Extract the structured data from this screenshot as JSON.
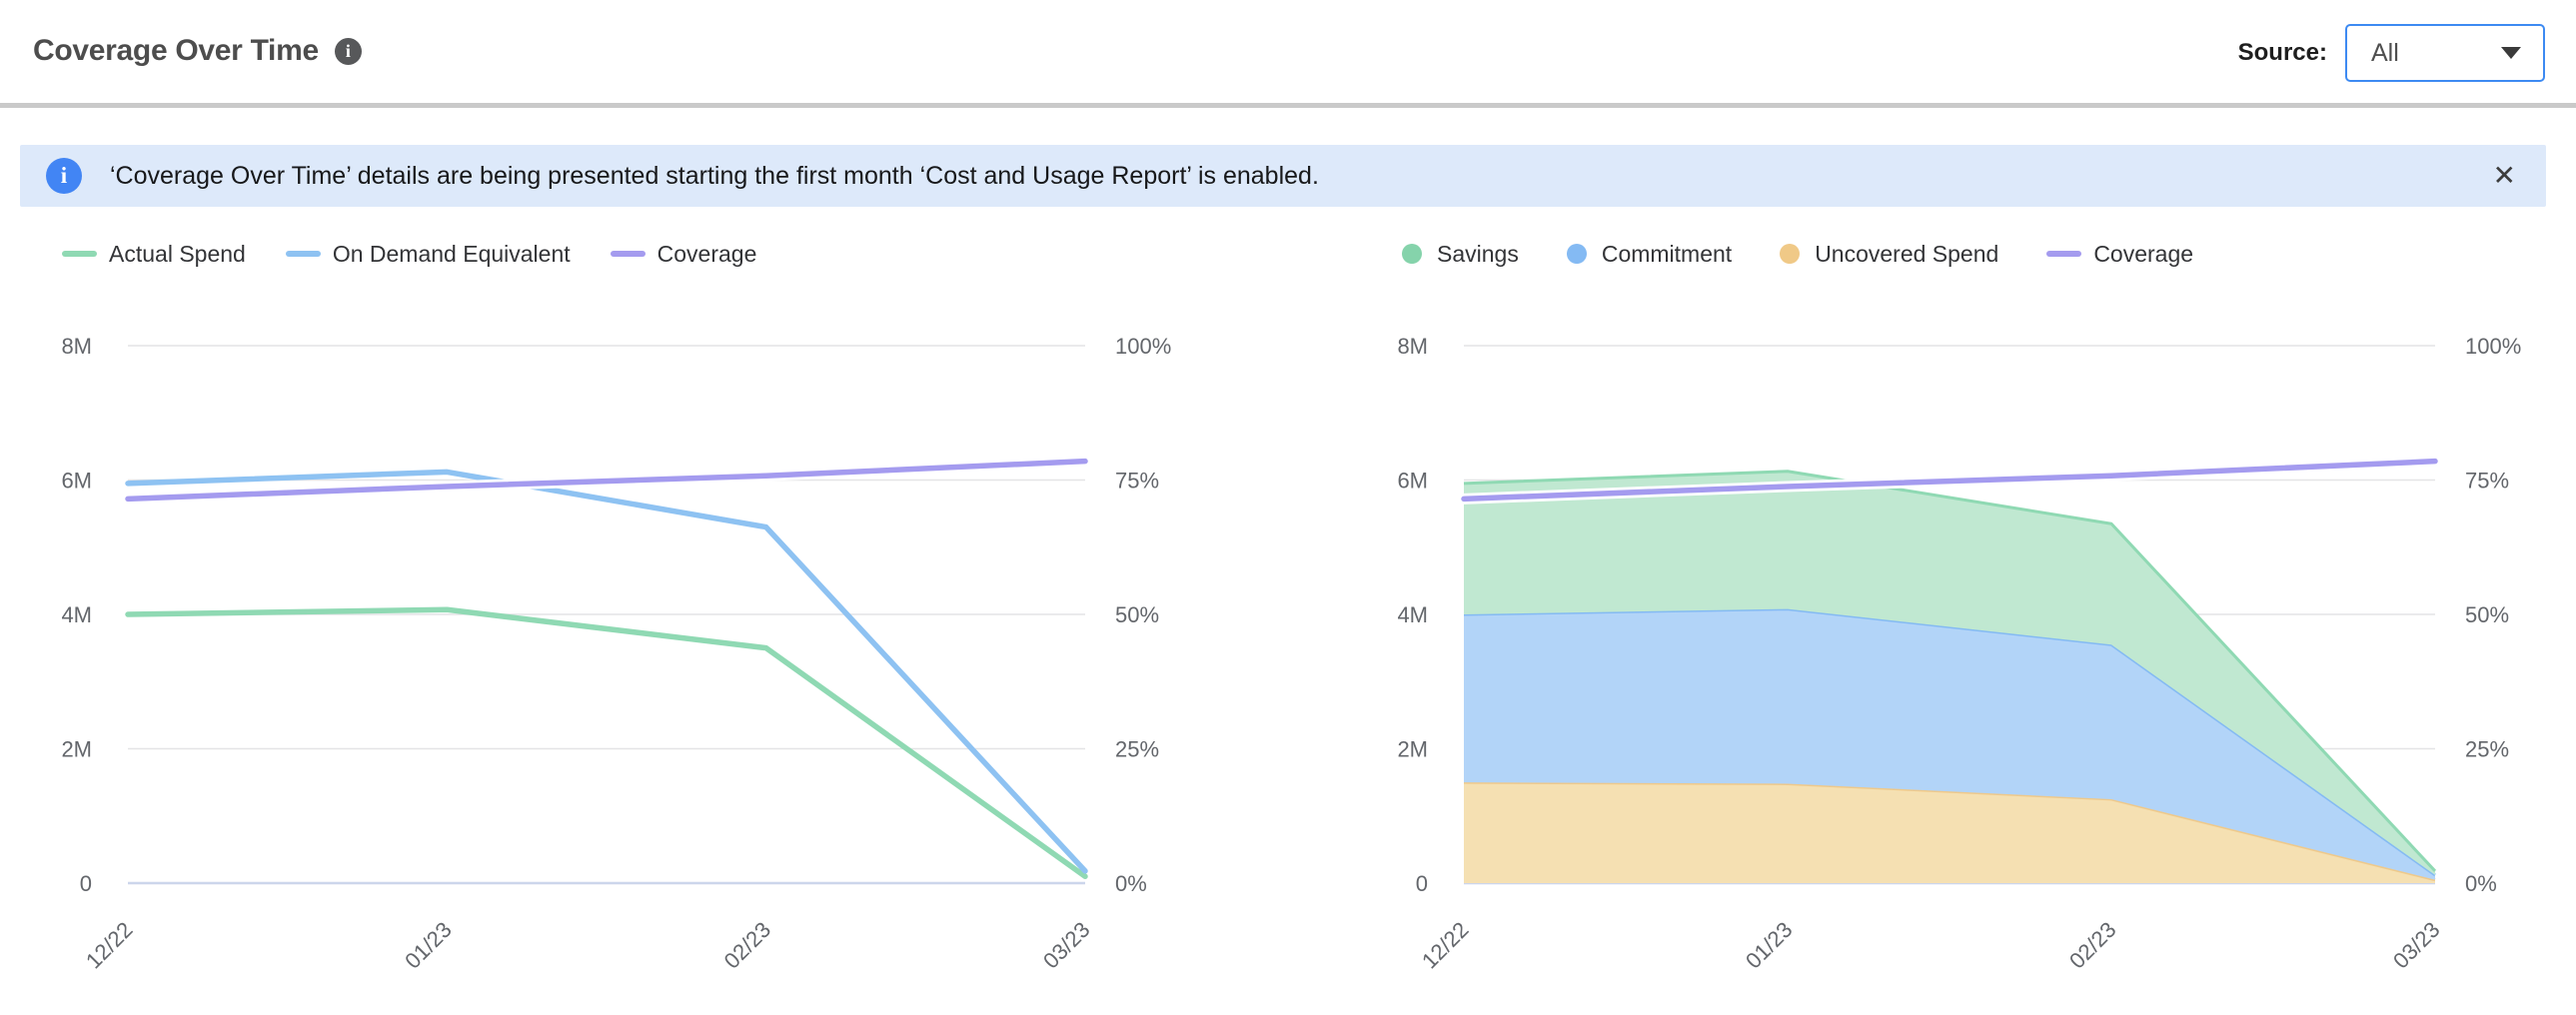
{
  "header": {
    "title": "Coverage Over Time",
    "source_label": "Source:",
    "source_value": "All"
  },
  "icons": {
    "info_glyph": "i",
    "close_glyph": "✕"
  },
  "banner": {
    "text": "‘Coverage Over Time’ details are being presented starting the first month ‘Cost and Usage Report’ is enabled."
  },
  "colors": {
    "banner_bg": "#dde9fa",
    "banner_icon_blue": "#4285f4",
    "dropdown_border_blue": "#3d8af2",
    "gridline": "#e4e4e6",
    "zero_axis_line": "#ccd6eb",
    "green": "#8fd9b3",
    "green_fill": "#c0e8d1",
    "blue": "#8ec2f2",
    "blue_fill": "#b2d4f8",
    "orange": "#eec98c",
    "orange_fill": "#f5e0b2",
    "purple": "#a49bef"
  },
  "chart_data": [
    {
      "id": "left",
      "type": "line",
      "title": "",
      "x": [
        "12/22",
        "01/23",
        "02/23",
        "03/23"
      ],
      "y_left": {
        "ticks": [
          "0",
          "2M",
          "4M",
          "6M",
          "8M"
        ],
        "max": 8,
        "unit": "M"
      },
      "y_right": {
        "ticks": [
          "0%",
          "25%",
          "50%",
          "75%",
          "100%"
        ],
        "max": 100,
        "unit": "%"
      },
      "grid": true,
      "legend_position": "top-left",
      "series": [
        {
          "name": "Actual Spend",
          "type": "line",
          "axis": "left",
          "color": "#8fd9b3",
          "values_m": [
            4.0,
            4.07,
            3.5,
            0.1
          ]
        },
        {
          "name": "On Demand Equivalent",
          "type": "line",
          "axis": "left",
          "color": "#8ec2f2",
          "values_m": [
            5.95,
            6.12,
            5.3,
            0.18
          ]
        },
        {
          "name": "Coverage",
          "type": "line",
          "axis": "right",
          "color": "#a49bef",
          "halo": true,
          "values_pct": [
            71.5,
            73.8,
            75.8,
            78.5
          ]
        }
      ],
      "legend": [
        {
          "label": "Actual Spend",
          "swatch": "line",
          "color": "#8fd9b3"
        },
        {
          "label": "On Demand Equivalent",
          "swatch": "line",
          "color": "#8ec2f2"
        },
        {
          "label": "Coverage",
          "swatch": "line",
          "color": "#a49bef"
        }
      ]
    },
    {
      "id": "right",
      "type": "area",
      "stacked": true,
      "title": "",
      "x": [
        "12/22",
        "01/23",
        "02/23",
        "03/23"
      ],
      "y_left": {
        "ticks": [
          "0",
          "2M",
          "4M",
          "6M",
          "8M"
        ],
        "max": 8,
        "unit": "M"
      },
      "y_right": {
        "ticks": [
          "0%",
          "25%",
          "50%",
          "75%",
          "100%"
        ],
        "max": 100,
        "unit": "%"
      },
      "grid": true,
      "legend_position": "top-left",
      "series": [
        {
          "name": "Uncovered Spend",
          "type": "area",
          "axis": "left",
          "color": "#eec98c",
          "fill": "#f5e0b2",
          "values_m": [
            1.5,
            1.48,
            1.25,
            0.05
          ]
        },
        {
          "name": "Commitment",
          "type": "area",
          "axis": "left",
          "color": "#84baf3",
          "fill": "#b2d4f8",
          "values_m": [
            2.5,
            2.6,
            2.3,
            0.07
          ]
        },
        {
          "name": "Savings",
          "type": "area",
          "axis": "left",
          "color": "#8fd9b3",
          "fill": "#c0e8d1",
          "values_m": [
            1.95,
            2.05,
            1.8,
            0.06
          ]
        },
        {
          "name": "Coverage",
          "type": "line",
          "axis": "right",
          "color": "#a49bef",
          "halo": true,
          "values_pct": [
            71.5,
            73.8,
            75.8,
            78.5
          ]
        }
      ],
      "legend": [
        {
          "label": "Savings",
          "swatch": "circle",
          "color": "#85d3ab"
        },
        {
          "label": "Commitment",
          "swatch": "circle",
          "color": "#84baf3"
        },
        {
          "label": "Uncovered Spend",
          "swatch": "circle",
          "color": "#f0c987"
        },
        {
          "label": "Coverage",
          "swatch": "line",
          "color": "#a49bef"
        }
      ]
    }
  ]
}
